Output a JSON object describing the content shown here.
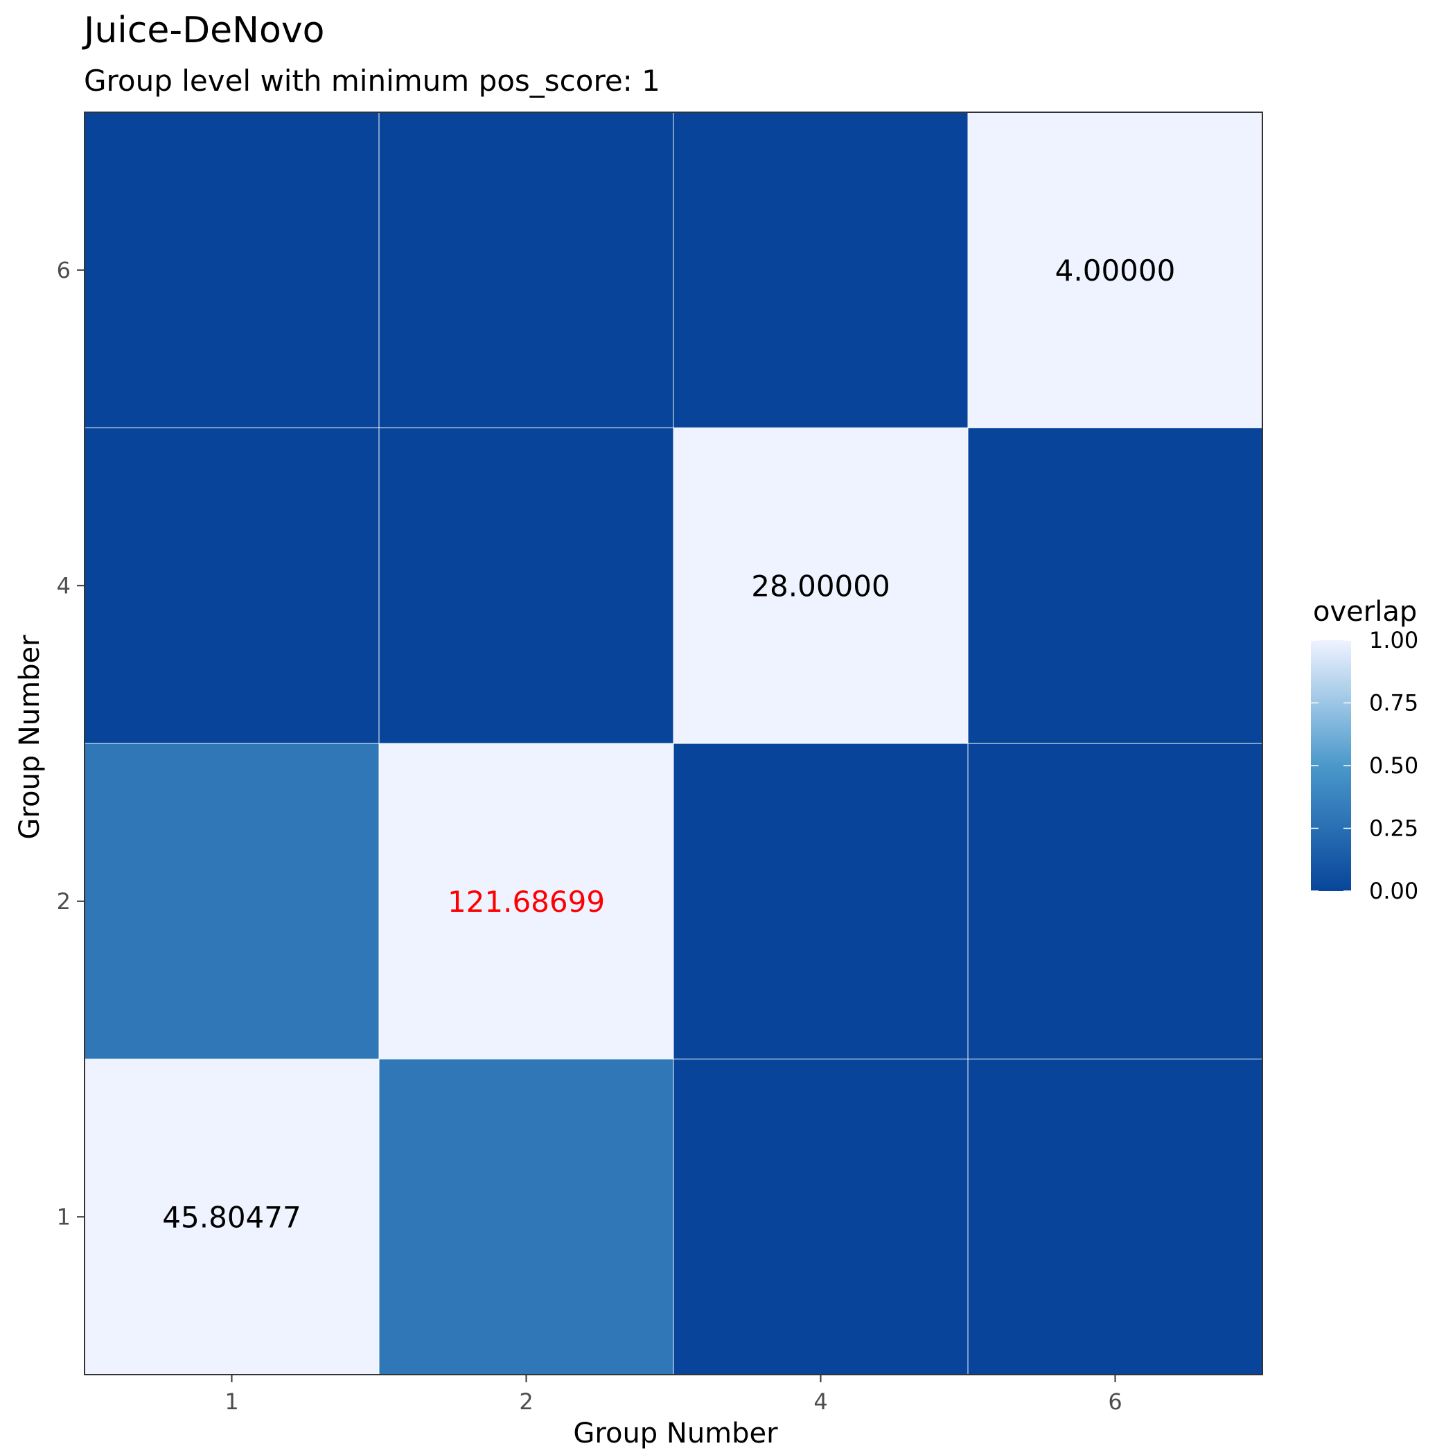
{
  "chart_data": {
    "type": "heatmap",
    "title": "Juice-DeNovo",
    "subtitle": "Group level with minimum pos_score: 1",
    "xlabel": "Group Number",
    "ylabel": "Group Number",
    "x_categories": [
      "1",
      "2",
      "4",
      "6"
    ],
    "y_categories": [
      "1",
      "2",
      "4",
      "6"
    ],
    "cells": [
      {
        "x": "1",
        "y": "1",
        "overlap": 1.0,
        "label": "45.80477"
      },
      {
        "x": "2",
        "y": "1",
        "overlap": 0.3,
        "label": ""
      },
      {
        "x": "4",
        "y": "1",
        "overlap": 0.0,
        "label": ""
      },
      {
        "x": "6",
        "y": "1",
        "overlap": 0.0,
        "label": ""
      },
      {
        "x": "1",
        "y": "2",
        "overlap": 0.3,
        "label": ""
      },
      {
        "x": "2",
        "y": "2",
        "overlap": 1.0,
        "label": "121.68699",
        "highlight": true
      },
      {
        "x": "4",
        "y": "2",
        "overlap": 0.0,
        "label": ""
      },
      {
        "x": "6",
        "y": "2",
        "overlap": 0.0,
        "label": ""
      },
      {
        "x": "1",
        "y": "4",
        "overlap": 0.0,
        "label": ""
      },
      {
        "x": "2",
        "y": "4",
        "overlap": 0.0,
        "label": ""
      },
      {
        "x": "4",
        "y": "4",
        "overlap": 1.0,
        "label": "28.00000"
      },
      {
        "x": "6",
        "y": "4",
        "overlap": 0.0,
        "label": ""
      },
      {
        "x": "1",
        "y": "6",
        "overlap": 0.0,
        "label": ""
      },
      {
        "x": "2",
        "y": "6",
        "overlap": 0.0,
        "label": ""
      },
      {
        "x": "4",
        "y": "6",
        "overlap": 0.0,
        "label": ""
      },
      {
        "x": "6",
        "y": "6",
        "overlap": 1.0,
        "label": "4.00000"
      }
    ],
    "legend": {
      "title": "overlap",
      "placement": "right",
      "ticks": [
        {
          "value": 0.0,
          "label": "0.00"
        },
        {
          "value": 0.25,
          "label": "0.25"
        },
        {
          "value": 0.5,
          "label": "0.50"
        },
        {
          "value": 0.75,
          "label": "0.75"
        },
        {
          "value": 1.0,
          "label": "1.00"
        }
      ],
      "range": [
        0,
        1
      ]
    },
    "colors": {
      "low": "#08459a",
      "mid": "#4a98cb",
      "high": "#eff3ff",
      "label_normal": "#000000",
      "label_highlight": "#ff0000",
      "grid": "#ffffff",
      "border": "#333333"
    }
  }
}
